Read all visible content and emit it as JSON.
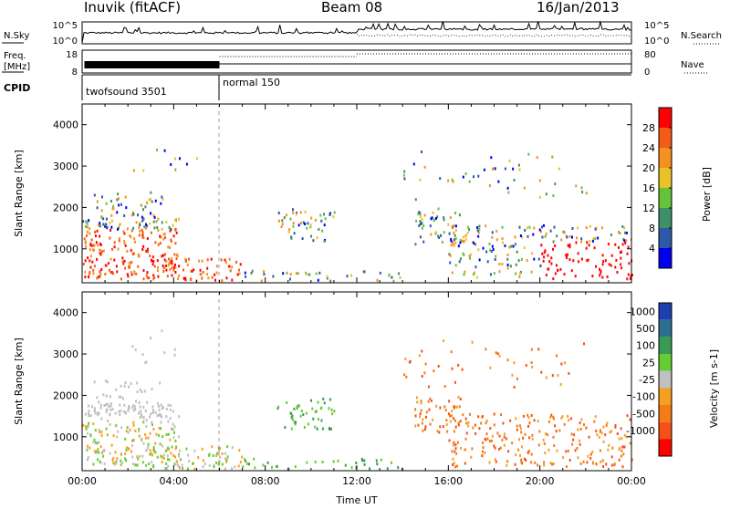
{
  "header": {
    "station": "Inuvik (fitACF)",
    "beam": "Beam 08",
    "date": "16/Jan/2013"
  },
  "noise_panel": {
    "left_label": "N.Sky",
    "right_label": "N.Search",
    "ticks_left": [
      "10^5",
      "10^0"
    ],
    "ticks_right": [
      "10^5",
      "10^0"
    ]
  },
  "freq_panel": {
    "left_label_1": "Freq.",
    "left_label_2": "[MHz]",
    "right_label": "Nave",
    "ticks_left": [
      "18",
      "8"
    ],
    "ticks_right": [
      "80",
      "0"
    ]
  },
  "cpid_panel": {
    "label": "CPID",
    "segments": [
      {
        "name": "twofsound 3501",
        "start_hour": 0,
        "end_hour": 6
      },
      {
        "name": "normal 150",
        "start_hour": 6,
        "end_hour": 24
      }
    ]
  },
  "chart_data": [
    {
      "type": "heatmap",
      "title": "",
      "xlabel": "",
      "ylabel": "Slant Range [km]",
      "xlim_hours": [
        0,
        24
      ],
      "ylim_km": [
        180,
        4500
      ],
      "y_ticks": [
        "1000",
        "2000",
        "3000",
        "4000"
      ],
      "colorbar_label": "Power [dB]",
      "colorbar_ticks": [
        "4",
        "8",
        "12",
        "16",
        "20",
        "24",
        "28"
      ],
      "colorbar_colors": [
        "#0000ee",
        "#2e58a8",
        "#3f8f6a",
        "#66c23a",
        "#e8c228",
        "#f59020",
        "#f55a18",
        "#ff0000"
      ],
      "mode_change_hour": 6
    },
    {
      "type": "heatmap",
      "title": "",
      "xlabel": "Time UT",
      "ylabel": "Slant Range [km]",
      "xlim_hours": [
        0,
        24
      ],
      "ylim_km": [
        180,
        4500
      ],
      "x_ticks": [
        "00:00",
        "04:00",
        "08:00",
        "12:00",
        "16:00",
        "20:00",
        "00:00"
      ],
      "y_ticks": [
        "1000",
        "2000",
        "3000",
        "4000"
      ],
      "colorbar_label": "Velocity [m s-1]",
      "colorbar_ticks": [
        "1000",
        "500",
        "100",
        "25",
        "-25",
        "-100",
        "-500",
        "-1000"
      ],
      "colorbar_colors": [
        "#1f3fb0",
        "#2d6f90",
        "#3a9a55",
        "#66cc33",
        "#c0c0c0",
        "#f5a020",
        "#f57a18",
        "#f55018",
        "#ff0000"
      ],
      "mode_change_hour": 6
    }
  ]
}
